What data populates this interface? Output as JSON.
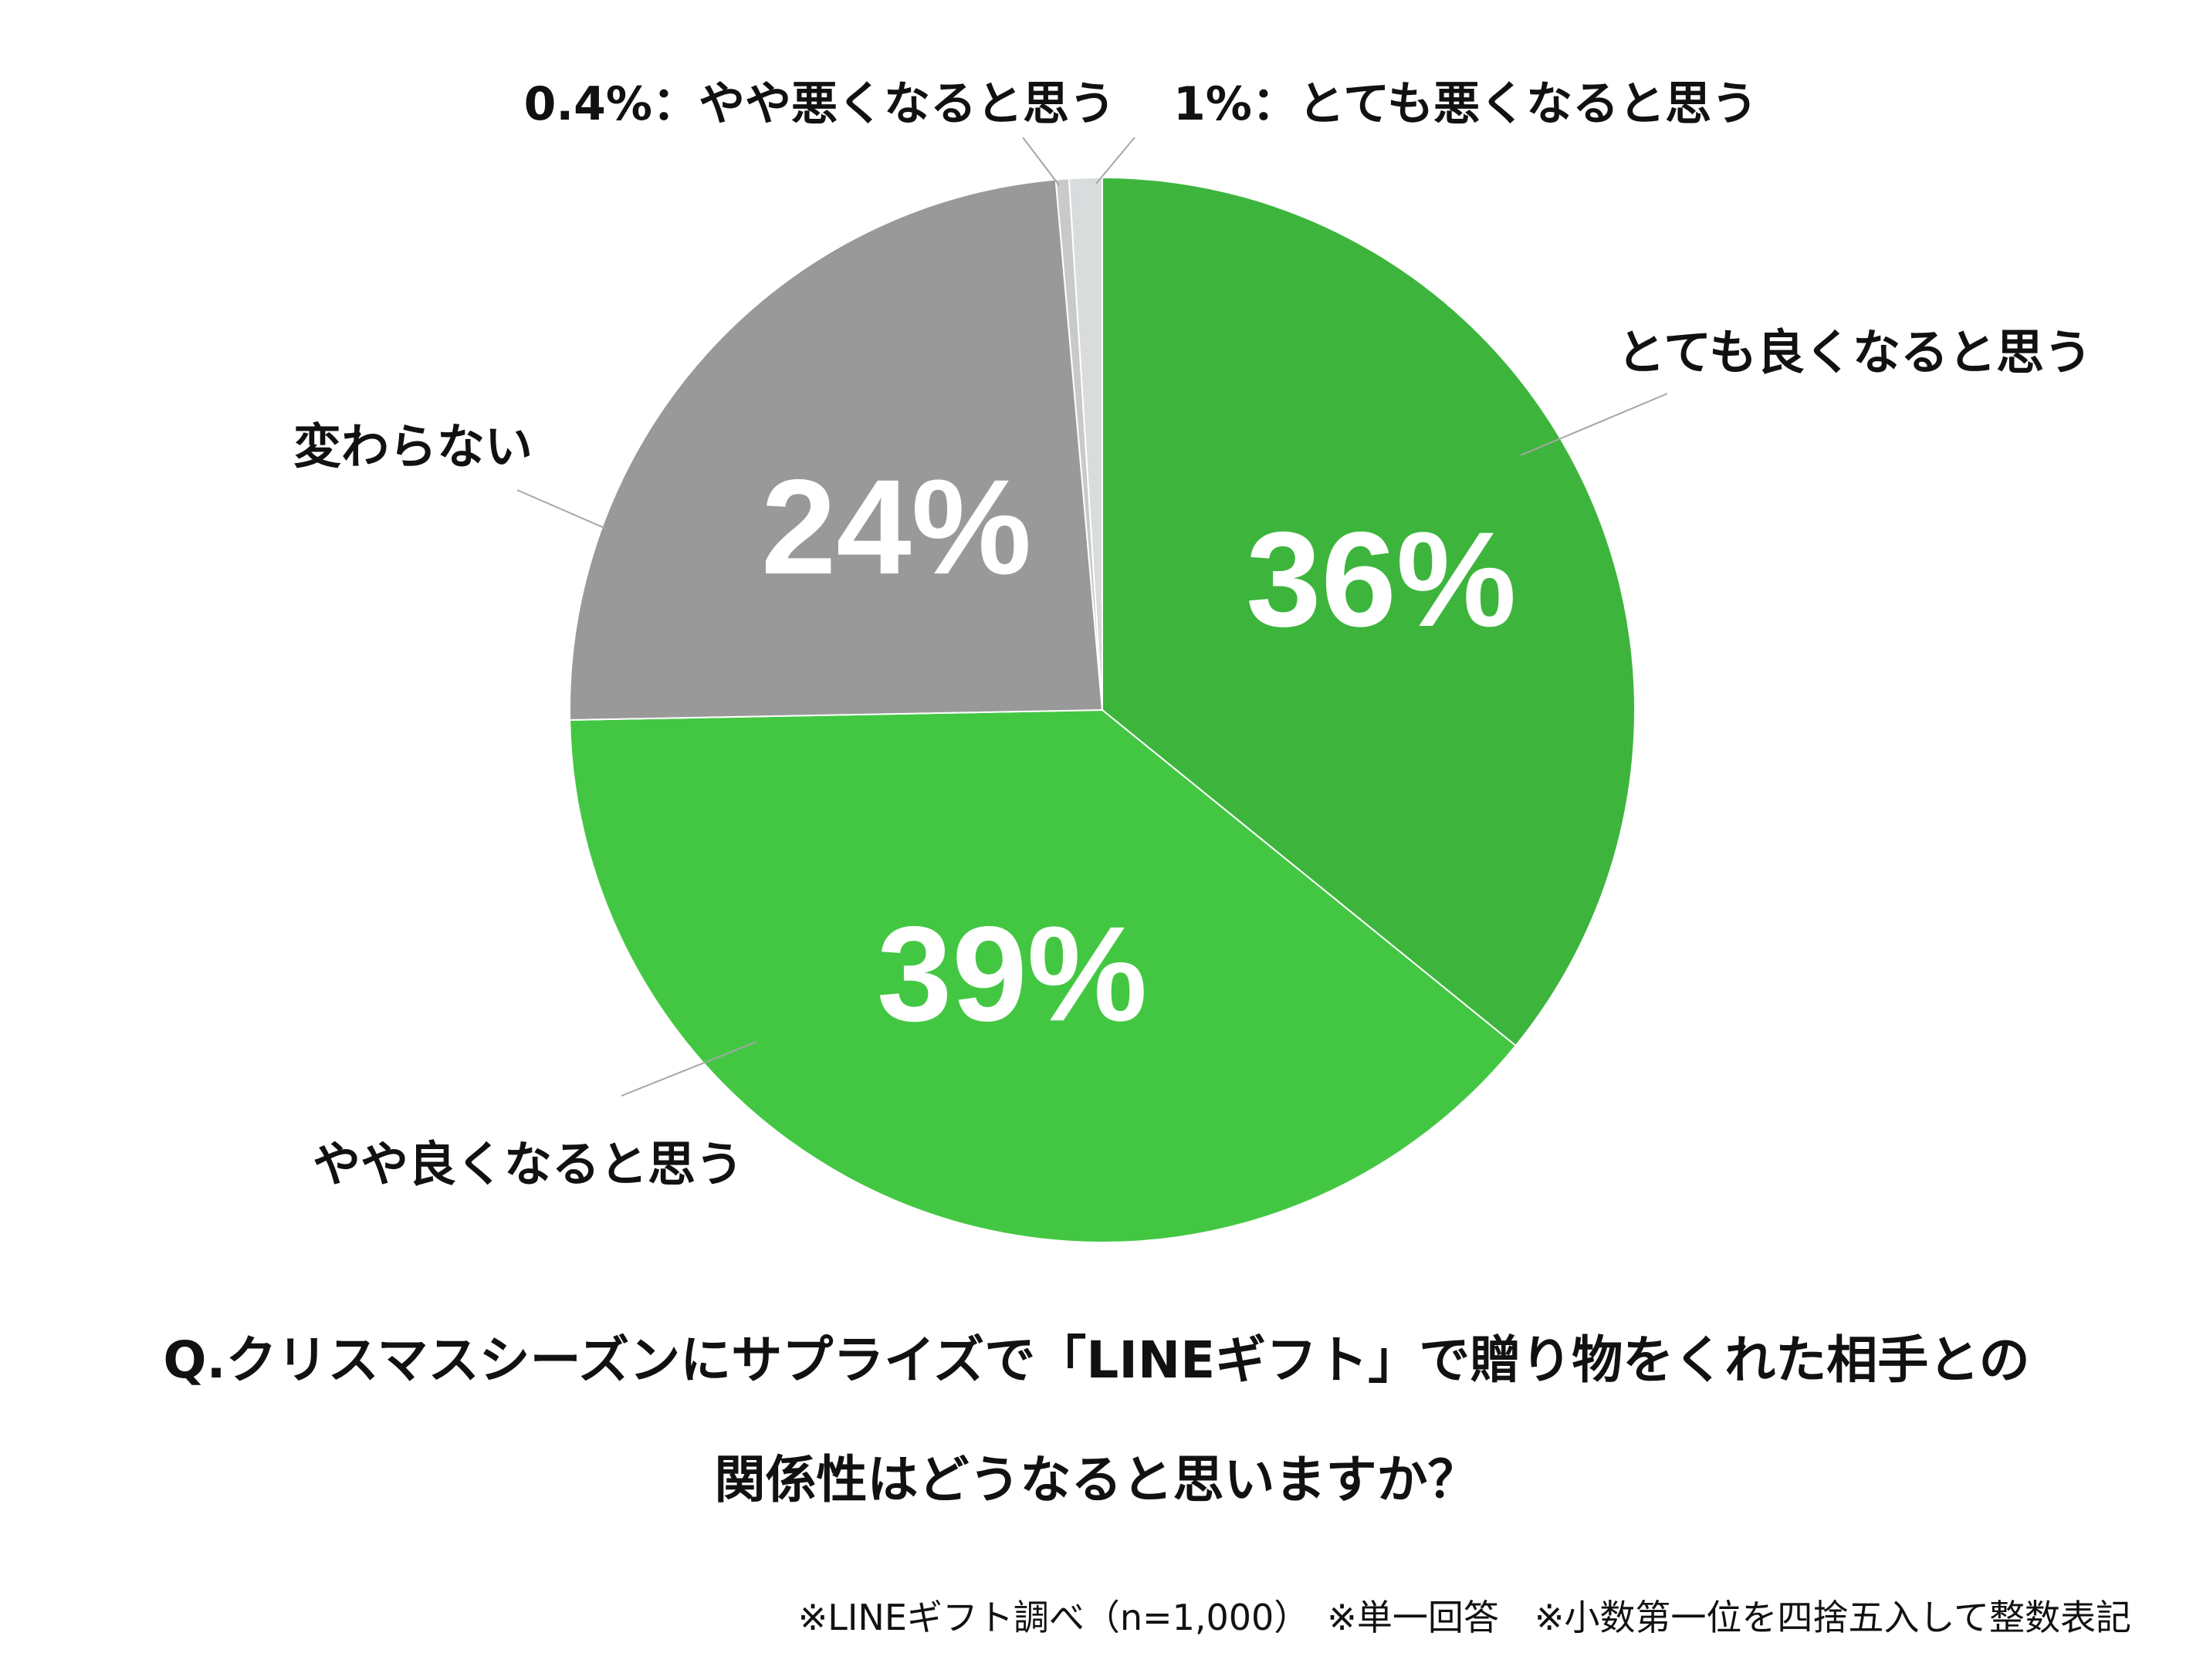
{
  "chart_data": {
    "type": "pie",
    "start": "12 o'clock, clockwise",
    "slices": [
      {
        "label": "とても良くなると思う",
        "value": 36,
        "display": "36%",
        "color": "#3db53d"
      },
      {
        "label": "やや良くなると思う",
        "value": 39,
        "display": "39%",
        "color": "#43c743"
      },
      {
        "label": "変わらない",
        "value": 24,
        "display": "24%",
        "color": "#999999"
      },
      {
        "label": "0.4%：やや悪くなると思う",
        "value": 0.4,
        "display": "",
        "color": "#c9c9c9"
      },
      {
        "label": "1%：とても悪くなると思う",
        "value": 1,
        "display": "",
        "color": "#d9dcdc"
      }
    ]
  },
  "question": {
    "line1": "Q.クリスマスシーズンにサプライズで「LINEギフト」で贈り物をくれた相手との",
    "line2": "関係性はどうなると思いますか？"
  },
  "footnote": "※LINEギフト調べ（n=1,000）　※単一回答　※小数第一位を四捨五入して整数表記"
}
